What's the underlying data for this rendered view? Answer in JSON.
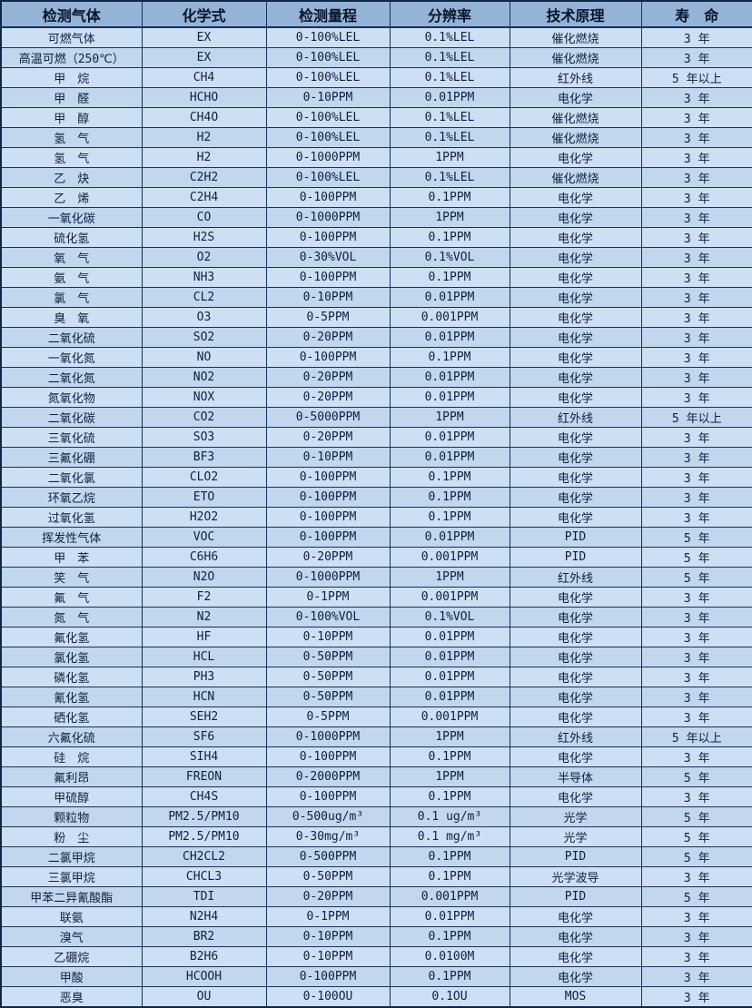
{
  "colors": {
    "header_bg": "#95b3d7",
    "row_light": "#cddff3",
    "row_dark": "#c2d6ee",
    "border": "#14325a",
    "text": "#0d2140"
  },
  "table": {
    "headers": [
      "检测气体",
      "化学式",
      "检测量程",
      "分辨率",
      "技术原理",
      "寿　命"
    ],
    "rows": [
      [
        "可燃气体",
        "EX",
        "0-100%LEL",
        "0.1%LEL",
        "催化燃烧",
        "3 年"
      ],
      [
        "高温可燃（250℃）",
        "EX",
        "0-100%LEL",
        "0.1%LEL",
        "催化燃烧",
        "3 年"
      ],
      [
        "甲　烷",
        "CH4",
        "0-100%LEL",
        "0.1%LEL",
        "红外线",
        "5 年以上"
      ],
      [
        "甲　醛",
        "HCHO",
        "0-10PPM",
        "0.01PPM",
        "电化学",
        "3 年"
      ],
      [
        "甲　醇",
        "CH4O",
        "0-100%LEL",
        "0.1%LEL",
        "催化燃烧",
        "3 年"
      ],
      [
        "氢　气",
        "H2",
        "0-100%LEL",
        "0.1%LEL",
        "催化燃烧",
        "3 年"
      ],
      [
        "氢　气",
        "H2",
        "0-1000PPM",
        "1PPM",
        "电化学",
        "3 年"
      ],
      [
        "乙　炔",
        "C2H2",
        "0-100%LEL",
        "0.1%LEL",
        "催化燃烧",
        "3 年"
      ],
      [
        "乙　烯",
        "C2H4",
        "0-100PPM",
        "0.1PPM",
        "电化学",
        "3 年"
      ],
      [
        "一氧化碳",
        "CO",
        "0-1000PPM",
        "1PPM",
        "电化学",
        "3 年"
      ],
      [
        "硫化氢",
        "H2S",
        "0-100PPM",
        "0.1PPM",
        "电化学",
        "3 年"
      ],
      [
        "氧　气",
        "O2",
        "0-30%VOL",
        "0.1%VOL",
        "电化学",
        "3 年"
      ],
      [
        "氨　气",
        "NH3",
        "0-100PPM",
        "0.1PPM",
        "电化学",
        "3 年"
      ],
      [
        "氯　气",
        "CL2",
        "0-10PPM",
        "0.01PPM",
        "电化学",
        "3 年"
      ],
      [
        "臭　氧",
        "O3",
        "0-5PPM",
        "0.001PPM",
        "电化学",
        "3 年"
      ],
      [
        "二氧化硫",
        "SO2",
        "0-20PPM",
        "0.01PPM",
        "电化学",
        "3 年"
      ],
      [
        "一氧化氮",
        "NO",
        "0-100PPM",
        "0.1PPM",
        "电化学",
        "3 年"
      ],
      [
        "二氧化氮",
        "NO2",
        "0-20PPM",
        "0.01PPM",
        "电化学",
        "3 年"
      ],
      [
        "氮氧化物",
        "NOX",
        "0-20PPM",
        "0.01PPM",
        "电化学",
        "3 年"
      ],
      [
        "二氧化碳",
        "CO2",
        "0-5000PPM",
        "1PPM",
        "红外线",
        "5 年以上"
      ],
      [
        "三氧化硫",
        "SO3",
        "0-20PPM",
        "0.01PPM",
        "电化学",
        "3 年"
      ],
      [
        "三氟化硼",
        "BF3",
        "0-10PPM",
        "0.01PPM",
        "电化学",
        "3 年"
      ],
      [
        "二氧化氯",
        "CLO2",
        "0-100PPM",
        "0.1PPM",
        "电化学",
        "3 年"
      ],
      [
        "环氧乙烷",
        "ETO",
        "0-100PPM",
        "0.1PPM",
        "电化学",
        "3 年"
      ],
      [
        "过氧化氢",
        "H2O2",
        "0-100PPM",
        "0.1PPM",
        "电化学",
        "3 年"
      ],
      [
        "挥发性气体",
        "VOC",
        "0-100PPM",
        "0.01PPM",
        "PID",
        "5 年"
      ],
      [
        "甲　苯",
        "C6H6",
        "0-20PPM",
        "0.001PPM",
        "PID",
        "5 年"
      ],
      [
        "笑　气",
        "N2O",
        "0-1000PPM",
        "1PPM",
        "红外线",
        "5 年"
      ],
      [
        "氟　气",
        "F2",
        "0-1PPM",
        "0.001PPM",
        "电化学",
        "3 年"
      ],
      [
        "氮　气",
        "N2",
        "0-100%VOL",
        "0.1%VOL",
        "电化学",
        "3 年"
      ],
      [
        "氟化氢",
        "HF",
        "0-10PPM",
        "0.01PPM",
        "电化学",
        "3 年"
      ],
      [
        "氯化氢",
        "HCL",
        "0-50PPM",
        "0.01PPM",
        "电化学",
        "3 年"
      ],
      [
        "磷化氢",
        "PH3",
        "0-50PPM",
        "0.01PPM",
        "电化学",
        "3 年"
      ],
      [
        "氰化氢",
        "HCN",
        "0-50PPM",
        "0.01PPM",
        "电化学",
        "3 年"
      ],
      [
        "硒化氢",
        "SEH2",
        "0-5PPM",
        "0.001PPM",
        "电化学",
        "3 年"
      ],
      [
        "六氟化硫",
        "SF6",
        "0-1000PPM",
        "1PPM",
        "红外线",
        "5 年以上"
      ],
      [
        "硅　烷",
        "SIH4",
        "0-100PPM",
        "0.1PPM",
        "电化学",
        "3 年"
      ],
      [
        "氟利昂",
        "FREON",
        "0-2000PPM",
        "1PPM",
        "半导体",
        "5 年"
      ],
      [
        "甲硫醇",
        "CH4S",
        "0-100PPM",
        "0.1PPM",
        "电化学",
        "3 年"
      ],
      [
        "颗粒物",
        "PM2.5/PM10",
        "0-500ug/m³",
        "0.1 ug/m³",
        "光学",
        "5 年"
      ],
      [
        "粉　尘",
        "PM2.5/PM10",
        "0-30mg/m³",
        "0.1 mg/m³",
        "光学",
        "5 年"
      ],
      [
        "二氯甲烷",
        "CH2CL2",
        "0-500PPM",
        "0.1PPM",
        "PID",
        "5 年"
      ],
      [
        "三氯甲烷",
        "CHCL3",
        "0-50PPM",
        "0.1PPM",
        "光学波导",
        "3 年"
      ],
      [
        "甲苯二异氰酸酯",
        "TDI",
        "0-20PPM",
        "0.001PPM",
        "PID",
        "5 年"
      ],
      [
        "联氨",
        "N2H4",
        "0-1PPM",
        "0.01PPM",
        "电化学",
        "3 年"
      ],
      [
        "溴气",
        "BR2",
        "0-10PPM",
        "0.1PPM",
        "电化学",
        "3 年"
      ],
      [
        "乙硼烷",
        "B2H6",
        "0-10PPM",
        "0.0100M",
        "电化学",
        "3 年"
      ],
      [
        "甲酸",
        "HCOOH",
        "0-100PPM",
        "0.1PPM",
        "电化学",
        "3 年"
      ],
      [
        "恶臭",
        "OU",
        "0-100OU",
        "0.1OU",
        "MOS",
        "3 年"
      ]
    ]
  }
}
